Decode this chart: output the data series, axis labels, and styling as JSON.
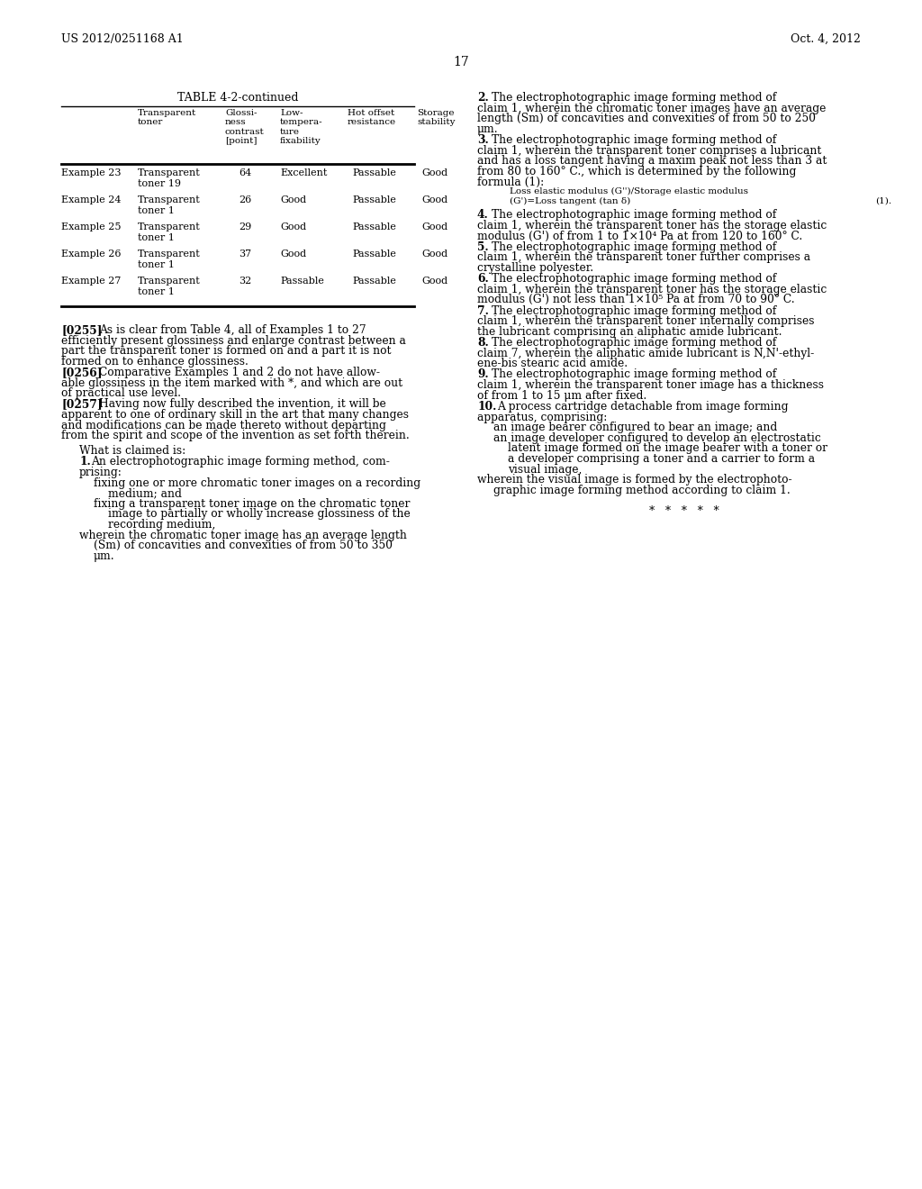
{
  "header_left": "US 2012/0251168 A1",
  "header_right": "Oct. 4, 2012",
  "page_number": "17",
  "background_color": "#ffffff",
  "text_color": "#000000",
  "table_title": "TABLE 4-2-continued",
  "rows": [
    [
      "Example 23",
      "Transparent\ntoner 19",
      "64",
      "Excellent",
      "Passable",
      "Good"
    ],
    [
      "Example 24",
      "Transparent\ntoner 1",
      "26",
      "Good",
      "Passable",
      "Good"
    ],
    [
      "Example 25",
      "Transparent\ntoner 1",
      "29",
      "Good",
      "Passable",
      "Good"
    ],
    [
      "Example 26",
      "Transparent\ntoner 1",
      "37",
      "Good",
      "Passable",
      "Good"
    ],
    [
      "Example 27",
      "Transparent\ntoner 1",
      "32",
      "Passable",
      "Passable",
      "Good"
    ]
  ]
}
